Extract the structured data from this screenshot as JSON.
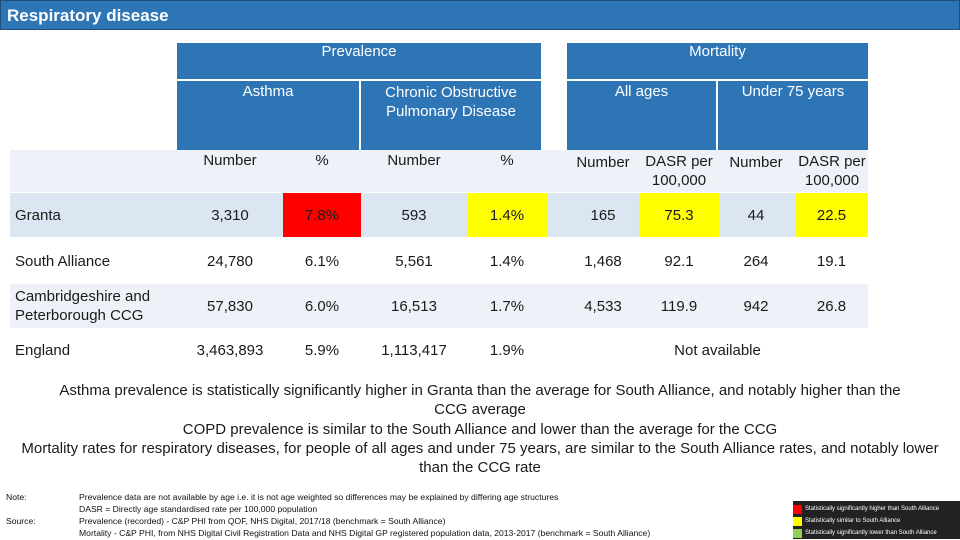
{
  "title": "Respiratory disease",
  "headers": {
    "prevalence": "Prevalence",
    "mortality": "Mortality",
    "asthma": "Asthma",
    "copd": "Chronic Obstructive Pulmonary Disease",
    "all_ages": "All ages",
    "under_75": "Under 75 years",
    "columns": [
      "Number",
      "%",
      "Number",
      "%",
      "Number",
      "DASR per 100,000",
      "Number",
      "DASR per 100,000"
    ]
  },
  "rows": [
    {
      "label": "Granta",
      "asthma_num": "3,310",
      "asthma_pct": "7.8%",
      "copd_num": "593",
      "copd_pct": "1.4%",
      "all_num": "165",
      "all_dasr": "75.3",
      "u75_num": "44",
      "u75_dasr": "22.5"
    },
    {
      "label": "South Alliance",
      "asthma_num": "24,780",
      "asthma_pct": "6.1%",
      "copd_num": "5,561",
      "copd_pct": "1.4%",
      "all_num": "1,468",
      "all_dasr": "92.1",
      "u75_num": "264",
      "u75_dasr": "19.1"
    },
    {
      "label": "Cambridgeshire and Peterborough CCG",
      "asthma_num": "57,830",
      "asthma_pct": "6.0%",
      "copd_num": "16,513",
      "copd_pct": "1.7%",
      "all_num": "4,533",
      "all_dasr": "119.9",
      "u75_num": "942",
      "u75_dasr": "26.8"
    },
    {
      "label": "England",
      "asthma_num": "3,463,893",
      "asthma_pct": "5.9%",
      "copd_num": "1,113,417",
      "copd_pct": "1.9%",
      "not_available": "Not available"
    }
  ],
  "colors": {
    "header_blue": "#2e75b6",
    "highlight_row": "#dce6f2",
    "stripe": "#eef2f8",
    "red": "#ff0000",
    "yellow": "#ffff00",
    "green": "#92d050"
  },
  "summary": [
    "Asthma prevalence is statistically significantly higher in Granta than the average for South Alliance, and notably higher than the CCG average",
    "COPD prevalence is similar to the South Alliance and lower than the average for the CCG",
    "Mortality rates for respiratory diseases, for people of all ages and under 75 years, are similar to the South Alliance rates, and notably lower than the CCG rate"
  ],
  "notes": {
    "note_label": "Note:",
    "note_lines": [
      "Prevalence data are not available by age i.e. it is not age weighted so differences may be explained by differing age structures",
      "DASR = Directly age standardised rate per 100,000 population"
    ],
    "source_label": "Source:",
    "source_lines": [
      "Prevalence (recorded) - C&P PHI from QOF, NHS Digital, 2017/18 (benchmark = South Alliance)",
      "Mortality - C&P PHI, from NHS Digital Civil Registration Data and NHS Digital GP registered population data, 2013-2017 (benchmark = South Alliance)"
    ]
  },
  "legend": [
    {
      "label": "Statistically significantly higher than South Alliance",
      "color": "#ff0000"
    },
    {
      "label": "Statistically similar to South Alliance",
      "color": "#ffff00"
    },
    {
      "label": "Statistically significantly lower than South Alliance",
      "color": "#92d050"
    }
  ]
}
